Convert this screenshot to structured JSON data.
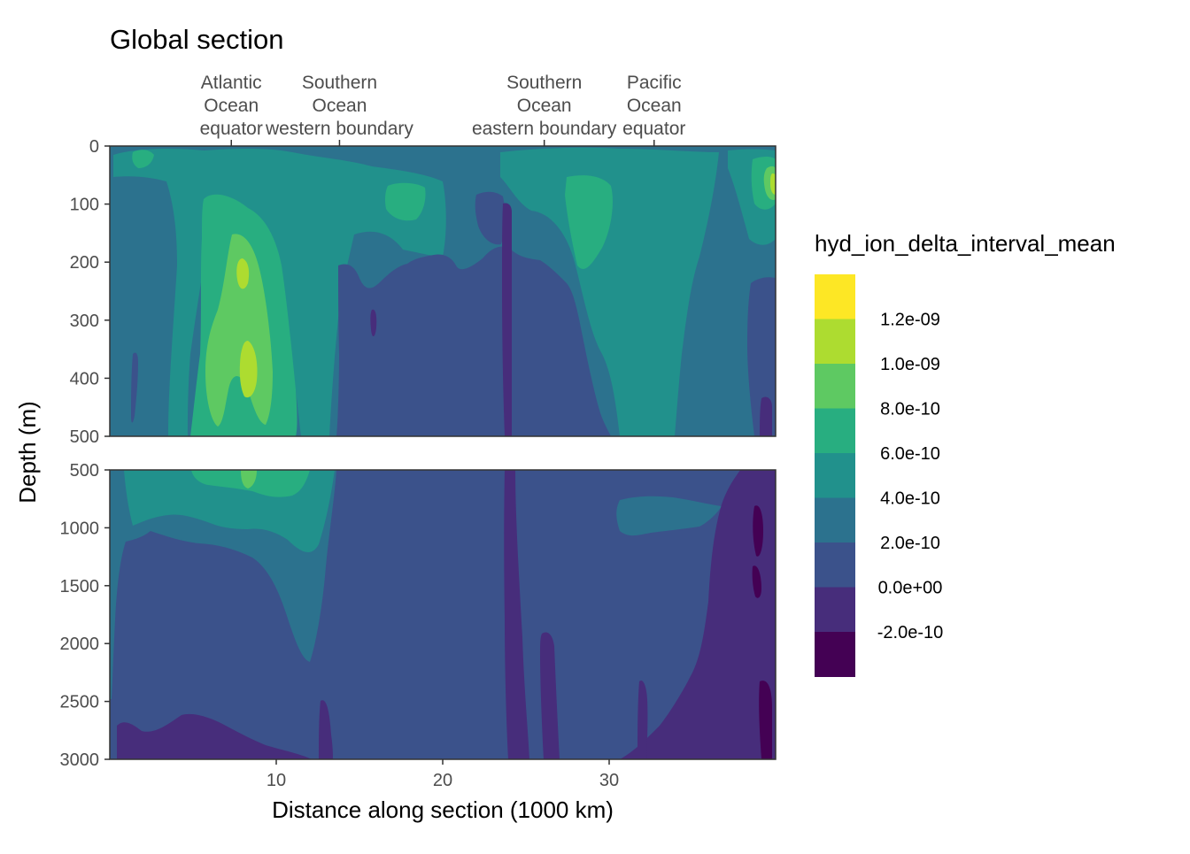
{
  "chart_data": {
    "type": "heatmap",
    "title": "Global section",
    "xlabel": "Distance along section (1000 km)",
    "ylabel": "Depth (m)",
    "xlim": [
      0,
      40
    ],
    "x_ticks": [
      "10",
      "20",
      "30"
    ],
    "section_labels": [
      {
        "x": 7.3,
        "lines": [
          "Atlantic",
          "Ocean",
          "equator"
        ]
      },
      {
        "x": 13.8,
        "lines": [
          "Southern",
          "Ocean",
          "western boundary"
        ]
      },
      {
        "x": 26.1,
        "lines": [
          "Southern",
          "Ocean",
          "eastern boundary"
        ]
      },
      {
        "x": 32.7,
        "lines": [
          "Pacific",
          "Ocean",
          "equator"
        ]
      }
    ],
    "panels": [
      {
        "name": "upper",
        "ylim": [
          0,
          500
        ],
        "y_ticks": [
          "0",
          "100",
          "200",
          "300",
          "400",
          "500"
        ]
      },
      {
        "name": "lower",
        "ylim": [
          500,
          3000
        ],
        "y_ticks": [
          "500",
          "1000",
          "1500",
          "2000",
          "2500",
          "3000"
        ]
      }
    ],
    "legend": {
      "title": "hyd_ion_delta_interval_mean",
      "placement": "right",
      "labels": [
        "1.2e-09",
        "1.0e-09",
        "8.0e-10",
        "6.0e-10",
        "4.0e-10",
        "2.0e-10",
        "0.0e+00",
        "-2.0e-10"
      ],
      "colors": [
        "#fde725",
        "#addc30",
        "#5ec962",
        "#28ae80",
        "#21918c",
        "#2c728e",
        "#3b528b",
        "#472d7b",
        "#440154"
      ]
    },
    "colors": {
      "c_neg2": "#440154",
      "c_neg1": "#472d7b",
      "c0": "#3b528b",
      "c2": "#2c728e",
      "c4": "#21918c",
      "c6": "#28ae80",
      "c8": "#5ec962",
      "c10": "#addc30",
      "c12": "#fde725"
    }
  }
}
